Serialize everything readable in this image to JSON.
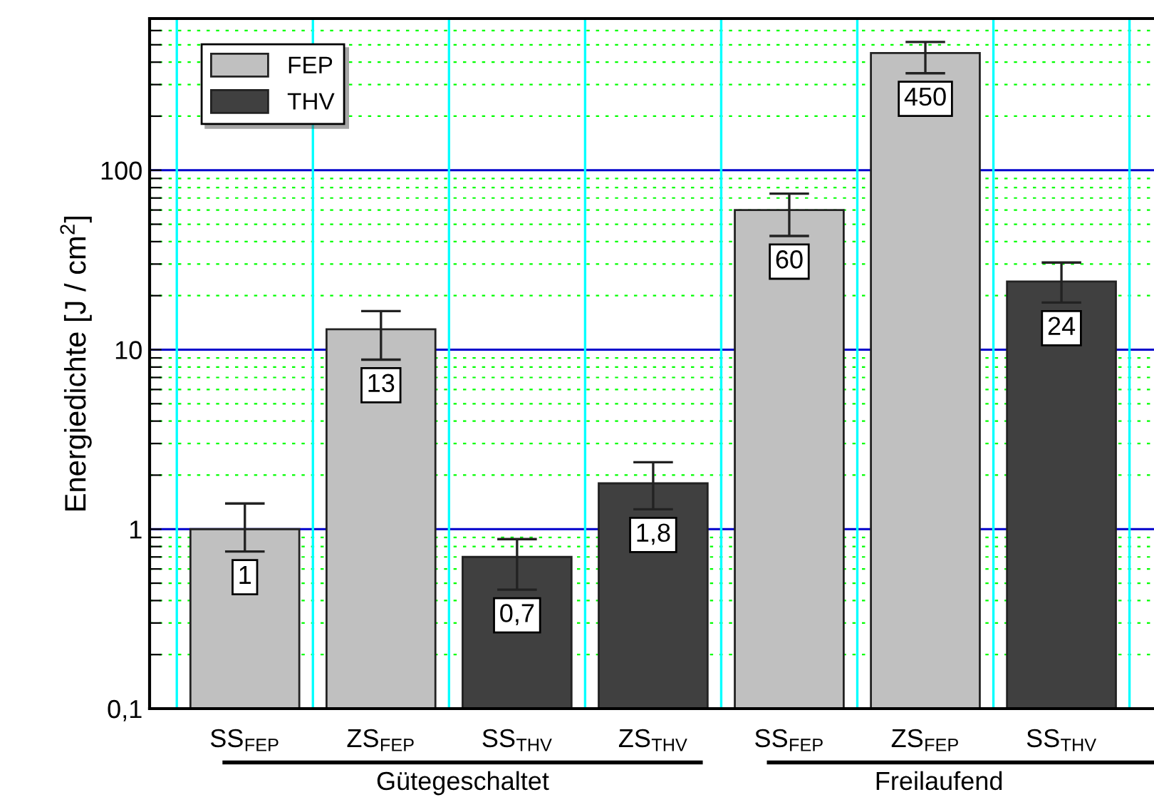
{
  "chart_data": {
    "type": "bar",
    "ylabel": "Energiedichte [J / cm$^{2}$]",
    "categories": [
      "SS$_{FEP}$",
      "ZS$_{FEP}$",
      "SS$_{THV}$",
      "ZS$_{THV}$",
      "SS$_{FEP}$",
      "ZS$_{FEP}$",
      "SS$_{THV}$"
    ],
    "series": [
      {
        "name": "FEP",
        "color": "#c0c0c0",
        "values": [
          1,
          13,
          null,
          null,
          60,
          450,
          null
        ],
        "errors": [
          [
            0.75,
            1.39
          ],
          [
            8.8,
            16.4
          ],
          null,
          null,
          [
            43,
            74
          ],
          [
            347,
            518
          ],
          null
        ],
        "value_labels": [
          "1",
          "13",
          null,
          null,
          "60",
          "450",
          null
        ]
      },
      {
        "name": "THV",
        "color": "#404040",
        "values": [
          null,
          null,
          0.7,
          1.8,
          null,
          null,
          24
        ],
        "errors": [
          null,
          null,
          [
            0.46,
            0.88
          ],
          [
            1.29,
            2.36
          ],
          null,
          null,
          [
            18.3,
            30.6
          ]
        ],
        "value_labels": [
          null,
          null,
          "0,7",
          "1,8",
          null,
          null,
          "24"
        ]
      }
    ],
    "log": "y",
    "ylim": [
      0.1,
      700
    ],
    "yticks": [
      {
        "value": 0.1,
        "label": "0,1"
      },
      {
        "value": 0.2,
        "label": null
      },
      {
        "value": 0.3,
        "label": null
      },
      {
        "value": 0.4,
        "label": null
      },
      {
        "value": 0.5,
        "label": null
      },
      {
        "value": 0.6,
        "label": null
      },
      {
        "value": 0.7,
        "label": null
      },
      {
        "value": 0.8,
        "label": null
      },
      {
        "value": 0.9,
        "label": null
      },
      1,
      {
        "value": 2,
        "label": null
      },
      {
        "value": 3,
        "label": null
      },
      {
        "value": 4,
        "label": null
      },
      {
        "value": 5,
        "label": null
      },
      {
        "value": 6,
        "label": null
      },
      {
        "value": 7,
        "label": null
      },
      {
        "value": 8,
        "label": null
      },
      {
        "value": 9,
        "label": null
      },
      10,
      {
        "value": 20,
        "label": null
      },
      {
        "value": 30,
        "label": null
      },
      {
        "value": 40,
        "label": null
      },
      {
        "value": 50,
        "label": null
      },
      {
        "value": 60,
        "label": null
      },
      {
        "value": 70,
        "label": null
      },
      {
        "value": 80,
        "label": null
      },
      {
        "value": 90,
        "label": null
      },
      100,
      {
        "value": 200,
        "label": null
      },
      {
        "value": 300,
        "label": null
      },
      {
        "value": 400,
        "label": null
      },
      {
        "value": 500,
        "label": null
      },
      {
        "value": 600,
        "label": null
      },
      {
        "value": 700,
        "label": null
      }
    ],
    "grid": true,
    "legend": "top left",
    "annotations": [
      "Gütegeschaltet",
      "Freilaufend"
    ]
  }
}
